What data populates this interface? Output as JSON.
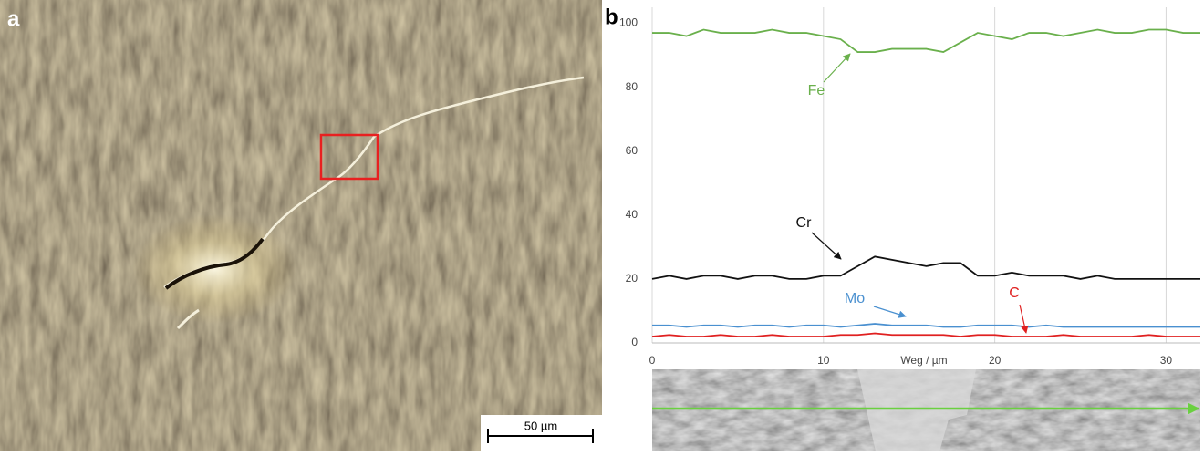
{
  "panel_a": {
    "label": "a",
    "scale_bar": "50 µm"
  },
  "panel_b": {
    "label": "b"
  },
  "chart_data": {
    "type": "line",
    "x_label": "Weg / µm",
    "x": [
      0,
      1,
      2,
      3,
      4,
      5,
      6,
      7,
      8,
      9,
      10,
      11,
      12,
      13,
      14,
      15,
      16,
      17,
      18,
      19,
      20,
      21,
      22,
      23,
      24,
      25,
      26,
      27,
      28,
      29,
      30,
      31,
      32
    ],
    "xlim": [
      0,
      32
    ],
    "xticks": [
      0,
      10,
      20,
      30
    ],
    "ylim": [
      0,
      105
    ],
    "yticks": [
      0,
      20,
      40,
      60,
      80,
      100
    ],
    "grid": "x",
    "series": [
      {
        "name": "Fe",
        "color": "#6ab04c",
        "values": [
          97,
          97,
          96,
          98,
          97,
          97,
          97,
          98,
          97,
          97,
          96,
          95,
          91,
          91,
          92,
          92,
          92,
          91,
          94,
          97,
          96,
          95,
          97,
          97,
          96,
          97,
          98,
          97,
          97,
          98,
          98,
          97,
          97
        ]
      },
      {
        "name": "Cr",
        "color": "#111111",
        "values": [
          20,
          21,
          20,
          21,
          21,
          20,
          21,
          21,
          20,
          20,
          21,
          21,
          24,
          27,
          26,
          25,
          24,
          25,
          25,
          21,
          21,
          22,
          21,
          21,
          21,
          20,
          21,
          20,
          20,
          20,
          20,
          20,
          20
        ]
      },
      {
        "name": "Mo",
        "color": "#4a90d0",
        "values": [
          5.5,
          5.5,
          5,
          5.5,
          5.5,
          5,
          5.5,
          5.5,
          5,
          5.5,
          5.5,
          5,
          5.5,
          6,
          5.5,
          5.5,
          5.5,
          5,
          5,
          5.5,
          5.5,
          5.5,
          5,
          5.5,
          5,
          5,
          5,
          5,
          5,
          5,
          5,
          5,
          5
        ]
      },
      {
        "name": "C",
        "color": "#e02020",
        "values": [
          2,
          2.5,
          2,
          2,
          2.5,
          2,
          2,
          2.5,
          2,
          2,
          2,
          2.5,
          2.5,
          3,
          2.5,
          2.5,
          2.5,
          2.5,
          2,
          2.5,
          2.5,
          2,
          2,
          2,
          2.5,
          2,
          2,
          2,
          2,
          2.5,
          2,
          2,
          2
        ]
      }
    ]
  }
}
